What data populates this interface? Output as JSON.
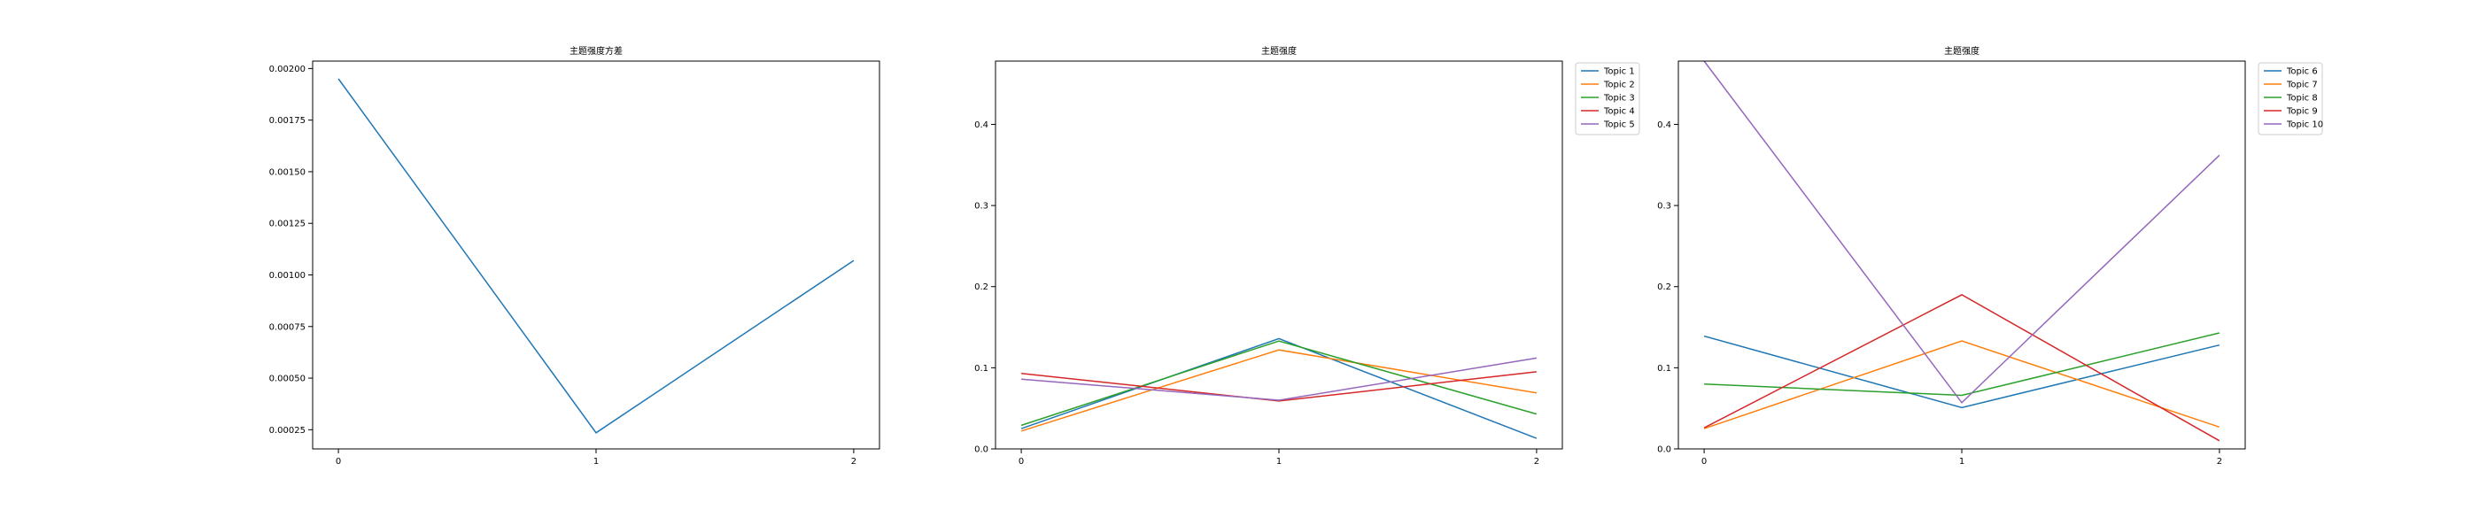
{
  "chart_data": [
    {
      "type": "line",
      "title": "主题强度方差",
      "x": [
        0,
        1,
        2
      ],
      "xticks": [
        0,
        1,
        2
      ],
      "yticks": [
        0.00025,
        0.0005,
        0.00075,
        0.001,
        0.00125,
        0.0015,
        0.00175,
        0.002
      ],
      "ytick_labels": [
        "0.00025",
        "0.00050",
        "0.00075",
        "0.00100",
        "0.00125",
        "0.00150",
        "0.00175",
        "0.00200"
      ],
      "xlim": [
        -0.1,
        2.1
      ],
      "ylim": [
        0.000157,
        0.002036
      ],
      "series": [
        {
          "values": [
            0.00195,
            0.000235,
            0.00107
          ],
          "color": "#1f77b4"
        }
      ],
      "legend": null
    },
    {
      "type": "line",
      "title": "主题强度",
      "x": [
        0,
        1,
        2
      ],
      "xticks": [
        0,
        1,
        2
      ],
      "yticks": [
        0.0,
        0.1,
        0.2,
        0.3,
        0.4
      ],
      "ytick_labels": [
        "0.0",
        "0.1",
        "0.2",
        "0.3",
        "0.4"
      ],
      "xlim": [
        -0.1,
        2.1
      ],
      "ylim": [
        0,
        0.478
      ],
      "legend": "outside-upper-right",
      "series": [
        {
          "name": "Topic 1",
          "values": [
            0.025,
            0.136,
            0.013
          ],
          "color": "#1f77b4"
        },
        {
          "name": "Topic 2",
          "values": [
            0.022,
            0.122,
            0.069
          ],
          "color": "#ff7f0e"
        },
        {
          "name": "Topic 3",
          "values": [
            0.029,
            0.133,
            0.043
          ],
          "color": "#2ca02c"
        },
        {
          "name": "Topic 4",
          "values": [
            0.093,
            0.059,
            0.095
          ],
          "color": "#d62728"
        },
        {
          "name": "Topic 5",
          "values": [
            0.086,
            0.06,
            0.112
          ],
          "color": "#9467bd"
        }
      ]
    },
    {
      "type": "line",
      "title": "主题强度",
      "x": [
        0,
        1,
        2
      ],
      "xticks": [
        0,
        1,
        2
      ],
      "yticks": [
        0.0,
        0.1,
        0.2,
        0.3,
        0.4
      ],
      "ytick_labels": [
        "0.0",
        "0.1",
        "0.2",
        "0.3",
        "0.4"
      ],
      "xlim": [
        -0.1,
        2.1
      ],
      "ylim": [
        0,
        0.478
      ],
      "legend": "outside-upper-right",
      "series": [
        {
          "name": "Topic 6",
          "values": [
            0.139,
            0.051,
            0.128
          ],
          "color": "#1f77b4"
        },
        {
          "name": "Topic 7",
          "values": [
            0.025,
            0.133,
            0.027
          ],
          "color": "#ff7f0e"
        },
        {
          "name": "Topic 8",
          "values": [
            0.08,
            0.066,
            0.143
          ],
          "color": "#2ca02c"
        },
        {
          "name": "Topic 9",
          "values": [
            0.026,
            0.19,
            0.01
          ],
          "color": "#d62728"
        },
        {
          "name": "Topic 10",
          "values": [
            0.478,
            0.057,
            0.362
          ],
          "color": "#9467bd"
        }
      ]
    }
  ]
}
